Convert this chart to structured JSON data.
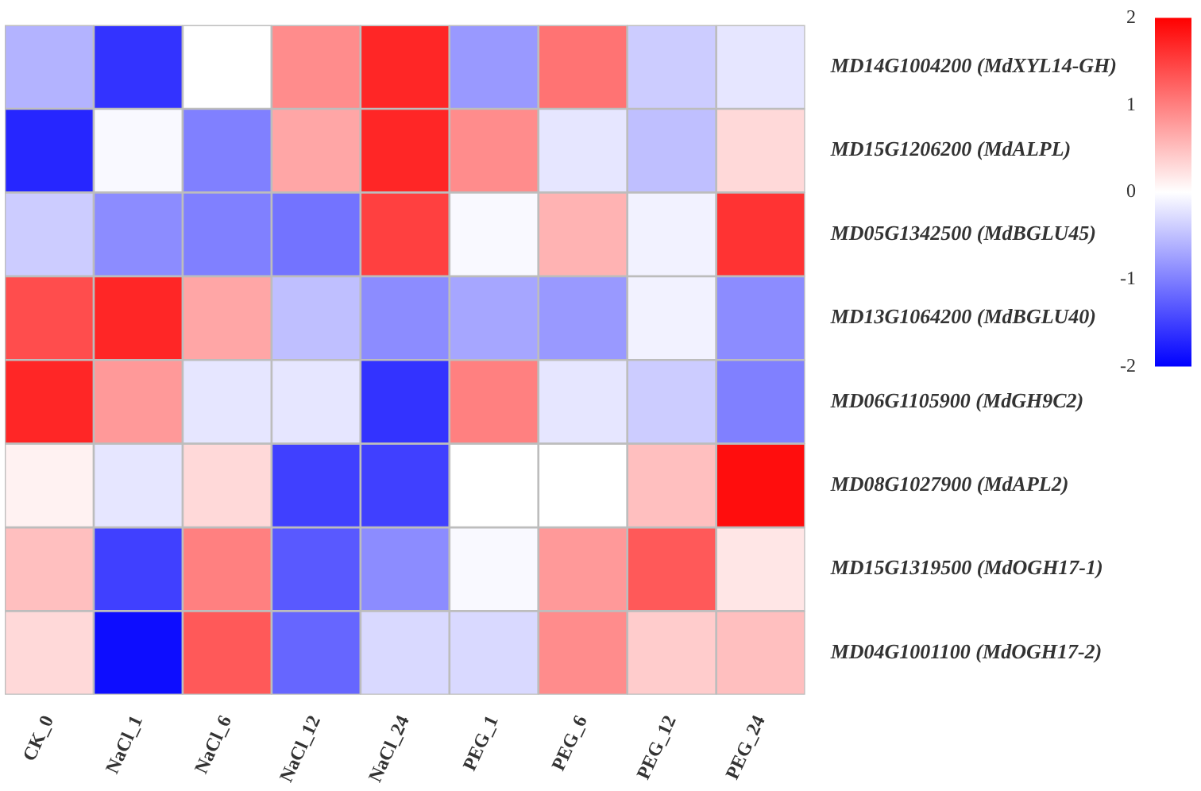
{
  "chart_data": {
    "type": "heatmap",
    "categories": [
      "CK_0",
      "NaCl_1",
      "NaCl_6",
      "NaCl_12",
      "NaCl_24",
      "PEG_1",
      "PEG_6",
      "PEG_12",
      "PEG_24"
    ],
    "y_categories": [
      "MD14G1004200 (MdXYL14-GH)",
      "MD15G1206200 (MdALPL)",
      "MD05G1342500 (MdBGLU45)",
      "MD13G1064200 (MdBGLU40)",
      "MD06G1105900 (MdGH9C2)",
      "MD08G1027900 (MdAPL2)",
      "MD15G1319500 (MdOGH17-1)",
      "MD04G1001100 (MdOGH17-2)"
    ],
    "cells": [
      [
        -0.6,
        -1.6,
        0,
        0.9,
        1.7,
        -0.8,
        1.1,
        -0.4,
        -0.2
      ],
      [
        -1.7,
        -0.05,
        -1.0,
        0.7,
        1.7,
        0.9,
        -0.2,
        -0.5,
        0.3
      ],
      [
        -0.4,
        -0.9,
        -1.0,
        -1.1,
        1.5,
        -0.05,
        0.6,
        -0.1,
        1.6
      ],
      [
        1.4,
        1.7,
        0.7,
        -0.5,
        -0.9,
        -0.7,
        -0.8,
        -0.1,
        -0.9
      ],
      [
        1.7,
        0.8,
        -0.2,
        -0.2,
        -1.6,
        1.0,
        -0.2,
        -0.4,
        -1.0
      ],
      [
        0.1,
        -0.2,
        0.3,
        -1.5,
        -1.5,
        0,
        0,
        0.5,
        1.9
      ],
      [
        0.5,
        -1.5,
        1.0,
        -1.3,
        -0.9,
        -0.05,
        0.8,
        1.3,
        0.2
      ],
      [
        0.3,
        -1.9,
        1.3,
        -1.2,
        -0.3,
        -0.3,
        0.9,
        0.4,
        0.5
      ]
    ],
    "clim": [
      -2,
      2
    ],
    "cticks": [
      -2,
      -1,
      0,
      1,
      2
    ]
  }
}
